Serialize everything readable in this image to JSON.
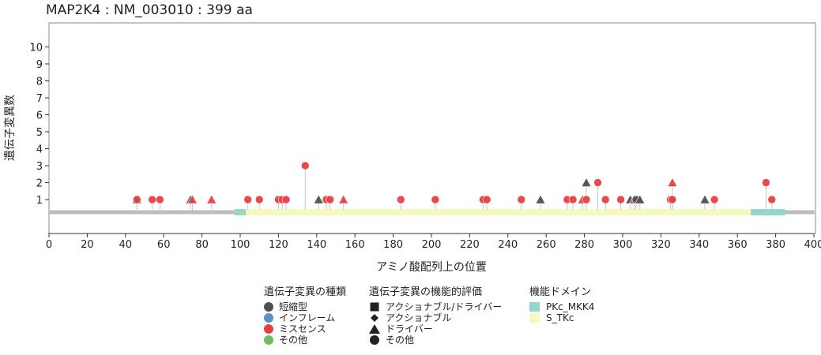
{
  "chart_data": {
    "type": "lollipop",
    "title": "MAP2K4 : NM_003010 : 399 aa",
    "xlabel": "アミノ酸配列上の位置",
    "ylabel": "遺伝子変異数",
    "xlim": [
      0,
      400
    ],
    "ylim": [
      0,
      11
    ],
    "x_ticks": [
      0,
      20,
      40,
      60,
      80,
      100,
      120,
      140,
      160,
      180,
      200,
      220,
      240,
      260,
      280,
      300,
      320,
      340,
      360,
      380,
      400
    ],
    "y_ticks": [
      1,
      2,
      3,
      4,
      5,
      6,
      7,
      8,
      9,
      10
    ],
    "protein_length": 399,
    "domains": [
      {
        "name": "PKc_MKK4",
        "start": 97,
        "end": 385,
        "color": "#93d6cc"
      },
      {
        "name": "S_TKc",
        "start": 103,
        "end": 367,
        "color": "#f6f9bd"
      }
    ],
    "mutations": [
      {
        "pos": 46,
        "count": 1,
        "type": "truncating",
        "function": "driver"
      },
      {
        "pos": 46,
        "count": 1,
        "type": "missense",
        "function": "other"
      },
      {
        "pos": 54,
        "count": 1,
        "type": "missense",
        "function": "other"
      },
      {
        "pos": 58,
        "count": 1,
        "type": "missense",
        "function": "other"
      },
      {
        "pos": 74,
        "count": 1,
        "type": "truncating",
        "function": "driver"
      },
      {
        "pos": 75,
        "count": 1,
        "type": "missense",
        "function": "driver"
      },
      {
        "pos": 85,
        "count": 1,
        "type": "missense",
        "function": "driver"
      },
      {
        "pos": 104,
        "count": 1,
        "type": "missense",
        "function": "other"
      },
      {
        "pos": 110,
        "count": 1,
        "type": "missense",
        "function": "other"
      },
      {
        "pos": 120,
        "count": 1,
        "type": "missense",
        "function": "other"
      },
      {
        "pos": 122,
        "count": 1,
        "type": "missense",
        "function": "other"
      },
      {
        "pos": 124,
        "count": 1,
        "type": "missense",
        "function": "other"
      },
      {
        "pos": 134,
        "count": 3,
        "type": "missense",
        "function": "other"
      },
      {
        "pos": 141,
        "count": 1,
        "type": "truncating",
        "function": "driver"
      },
      {
        "pos": 145,
        "count": 1,
        "type": "missense",
        "function": "other"
      },
      {
        "pos": 147,
        "count": 1,
        "type": "missense",
        "function": "other"
      },
      {
        "pos": 154,
        "count": 1,
        "type": "missense",
        "function": "driver"
      },
      {
        "pos": 184,
        "count": 1,
        "type": "missense",
        "function": "other"
      },
      {
        "pos": 202,
        "count": 1,
        "type": "missense",
        "function": "other"
      },
      {
        "pos": 227,
        "count": 1,
        "type": "missense",
        "function": "other"
      },
      {
        "pos": 229,
        "count": 1,
        "type": "missense",
        "function": "other"
      },
      {
        "pos": 247,
        "count": 1,
        "type": "missense",
        "function": "other"
      },
      {
        "pos": 257,
        "count": 1,
        "type": "truncating",
        "function": "driver"
      },
      {
        "pos": 271,
        "count": 1,
        "type": "missense",
        "function": "other"
      },
      {
        "pos": 274,
        "count": 1,
        "type": "missense",
        "function": "other"
      },
      {
        "pos": 279,
        "count": 1,
        "type": "missense",
        "function": "driver"
      },
      {
        "pos": 281,
        "count": 1,
        "type": "missense",
        "function": "other"
      },
      {
        "pos": 281,
        "count": 2,
        "type": "truncating",
        "function": "driver"
      },
      {
        "pos": 287,
        "count": 2,
        "type": "missense",
        "function": "other"
      },
      {
        "pos": 291,
        "count": 1,
        "type": "missense",
        "function": "other"
      },
      {
        "pos": 299,
        "count": 1,
        "type": "missense",
        "function": "other"
      },
      {
        "pos": 304,
        "count": 1,
        "type": "truncating",
        "function": "driver"
      },
      {
        "pos": 306,
        "count": 1,
        "type": "missense",
        "function": "driver"
      },
      {
        "pos": 307,
        "count": 1,
        "type": "truncating",
        "function": "other"
      },
      {
        "pos": 309,
        "count": 1,
        "type": "truncating",
        "function": "driver"
      },
      {
        "pos": 325,
        "count": 1,
        "type": "missense",
        "function": "other"
      },
      {
        "pos": 326,
        "count": 2,
        "type": "missense",
        "function": "driver"
      },
      {
        "pos": 326,
        "count": 1,
        "type": "missense",
        "function": "other"
      },
      {
        "pos": 343,
        "count": 1,
        "type": "truncating",
        "function": "driver"
      },
      {
        "pos": 348,
        "count": 1,
        "type": "missense",
        "function": "other"
      },
      {
        "pos": 375,
        "count": 2,
        "type": "missense",
        "function": "other"
      },
      {
        "pos": 378,
        "count": 1,
        "type": "missense",
        "function": "other"
      }
    ],
    "mutation_type_colors": {
      "truncating": "#505050",
      "inframe": "#5b8fc8",
      "missense": "#e84040",
      "other": "#6cc05c"
    },
    "legend": {
      "type_title": "遺伝子変異の種類",
      "type_items": [
        {
          "key": "truncating",
          "label": "短縮型"
        },
        {
          "key": "inframe",
          "label": "インフレーム"
        },
        {
          "key": "missense",
          "label": "ミスセンス"
        },
        {
          "key": "other",
          "label": "その他"
        }
      ],
      "function_title": "遺伝子変異の機能的評価",
      "function_items": [
        {
          "shape": "square",
          "label": "アクショナブル/ドライバー"
        },
        {
          "shape": "diamond",
          "label": "アクショナブル"
        },
        {
          "shape": "triangle",
          "label": "ドライバー"
        },
        {
          "shape": "circle",
          "label": "その他"
        }
      ],
      "domain_title": "機能ドメイン",
      "domain_items": [
        {
          "label": "PKc_MKK4",
          "color": "#93d6cc"
        },
        {
          "label": "S_TKc",
          "color": "#f6f9bd"
        }
      ]
    }
  }
}
